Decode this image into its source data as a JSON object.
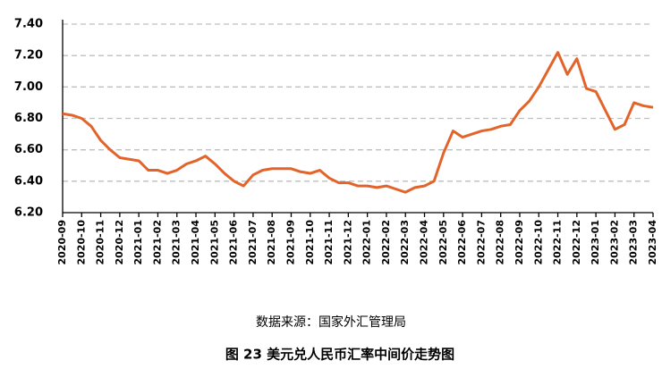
{
  "chart_data": {
    "type": "line",
    "source": "数据来源：国家外汇管理局",
    "caption": "图 23   美元兑人民币汇率中间价走势图",
    "categories": [
      "2020-09",
      null,
      "2020-10",
      null,
      "2020-11",
      null,
      "2020-12",
      null,
      "2021-01",
      null,
      "2021-02",
      null,
      "2021-03",
      null,
      "2021-04",
      null,
      "2021-05",
      null,
      "2021-06",
      null,
      "2021-07",
      null,
      "2021-08",
      null,
      "2021-09",
      null,
      "2021-10",
      null,
      "2021-11",
      null,
      "2021-12",
      null,
      "2022-01",
      null,
      "2022-02",
      null,
      "2022-03",
      null,
      "2022-04",
      null,
      "2022-05",
      null,
      "2022-06",
      null,
      "2022-07",
      null,
      "2022-08",
      null,
      "2022-09",
      null,
      "2022-10",
      null,
      "2022-11",
      null,
      "2022-12",
      null,
      "2023-01",
      null,
      "2023-02",
      null,
      "2023-03",
      null,
      "2023-04"
    ],
    "series": [
      {
        "color": "#e2642a",
        "values": [
          6.83,
          6.82,
          6.8,
          6.75,
          6.66,
          6.6,
          6.55,
          6.54,
          6.53,
          6.47,
          6.47,
          6.45,
          6.47,
          6.51,
          6.53,
          6.56,
          6.51,
          6.45,
          6.4,
          6.37,
          6.44,
          6.47,
          6.48,
          6.48,
          6.48,
          6.46,
          6.45,
          6.47,
          6.42,
          6.39,
          6.39,
          6.37,
          6.37,
          6.36,
          6.37,
          6.35,
          6.33,
          6.36,
          6.37,
          6.4,
          6.58,
          6.72,
          6.68,
          6.7,
          6.72,
          6.73,
          6.75,
          6.76,
          6.85,
          6.91,
          7.0,
          7.11,
          7.22,
          7.08,
          7.18,
          6.99,
          6.97,
          6.85,
          6.73,
          6.76,
          6.9,
          6.88,
          6.87
        ]
      }
    ],
    "ylim": [
      6.2,
      7.4
    ],
    "yticks": [
      {
        "value": 6.2,
        "label": "6.20"
      },
      {
        "value": 6.4,
        "label": "6.40"
      },
      {
        "value": 6.6,
        "label": "6.60"
      },
      {
        "value": 6.8,
        "label": "6.80"
      },
      {
        "value": 7.0,
        "label": "7.00"
      },
      {
        "value": 7.2,
        "label": "7.20"
      },
      {
        "value": 7.4,
        "label": "7.40"
      }
    ],
    "grid": true
  }
}
